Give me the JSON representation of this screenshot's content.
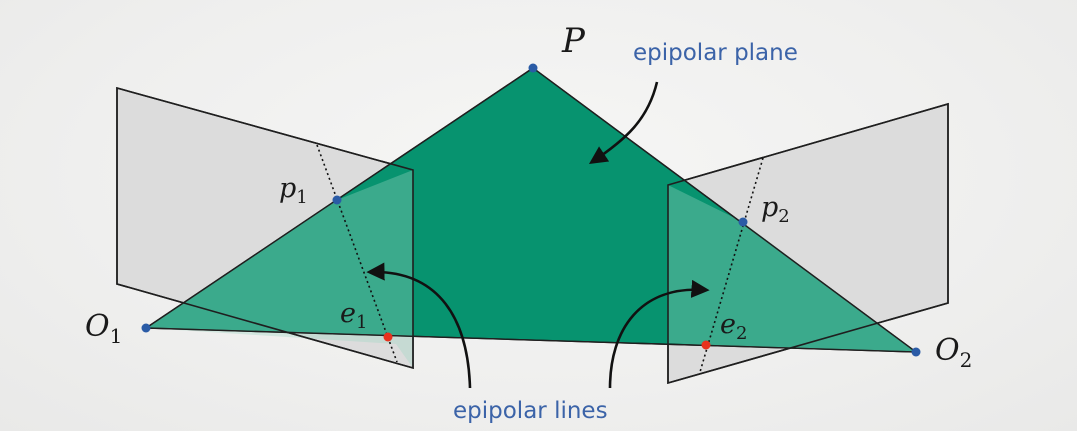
{
  "diagram": {
    "labels": {
      "P": "P",
      "p1_base": "p",
      "p1_sub": "1",
      "p2_base": "p",
      "p2_sub": "2",
      "e1_base": "e",
      "e1_sub": "1",
      "e2_base": "e",
      "e2_sub": "2",
      "O1_base": "O",
      "O1_sub": "1",
      "O2_base": "O",
      "O2_sub": "2"
    },
    "annotations": {
      "epipolar_plane": "epipolar plane",
      "epipolar_lines": "epipolar lines"
    },
    "colors": {
      "plane_fill": "#07936f",
      "plane_fill_lower": "#249b79",
      "image_plane_fill": "#d9d9d9",
      "image_plane_stroke": "#1f1f1f",
      "point_blue": "#2a5ba6",
      "point_red": "#e8321e",
      "annotation_text": "#3b63a8"
    }
  }
}
